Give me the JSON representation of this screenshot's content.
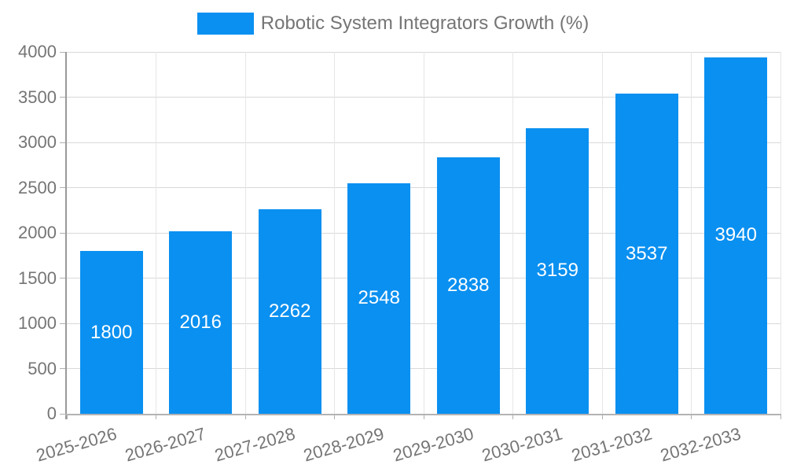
{
  "chart_data": {
    "type": "bar",
    "title": "",
    "legend": {
      "label": "Robotic System Integrators Growth (%)",
      "position": "top"
    },
    "categories": [
      "2025-2026",
      "2026-2027",
      "2027-2028",
      "2028-2029",
      "2029-2030",
      "2030-2031",
      "2031-2032",
      "2032-2033"
    ],
    "values": [
      1800,
      2016,
      2262,
      2548,
      2838,
      3159,
      3537,
      3940
    ],
    "bar_value_labels_shown": true,
    "xlabel": "",
    "ylabel": "",
    "ylim": [
      0,
      4000
    ],
    "yticks": [
      0,
      500,
      1000,
      1500,
      2000,
      2500,
      3000,
      3500,
      4000
    ],
    "grid": "horizontal every 500, vertical at category boundaries",
    "x_label_rotation_deg": -16,
    "colors": {
      "bar": "#0a90f0",
      "bar_label_text": "#ffffff",
      "axis_text": "#757575",
      "gridline_h": "#d9d9d9",
      "gridline_v": "#e6e6e6",
      "axis_line_y": "#999999",
      "axis_line_x": "#b3b3b3",
      "tick": "#b0b0b0",
      "background": "#ffffff"
    }
  }
}
